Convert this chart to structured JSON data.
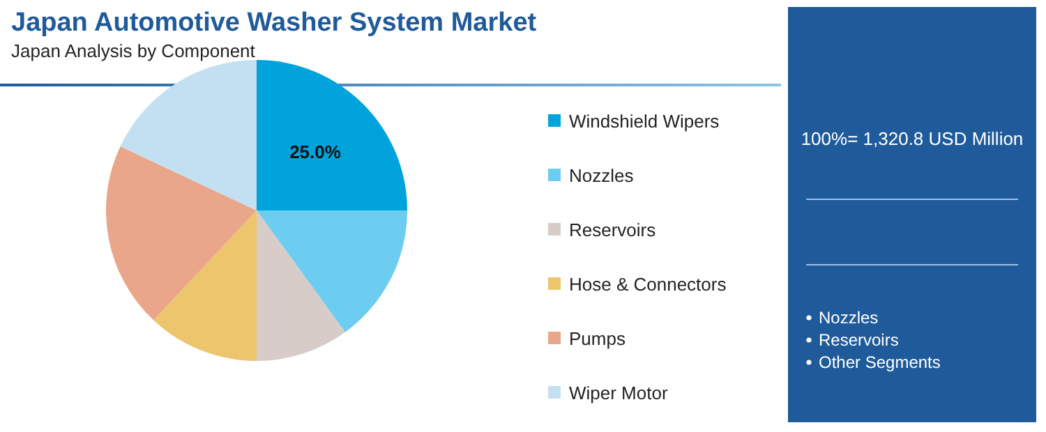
{
  "chart_data": {
    "type": "pie",
    "title": "Japan Automotive Washer System Market",
    "subtitle": "Japan Analysis by Component",
    "categories": [
      "Windshield Wipers",
      "Nozzles",
      "Reservoirs",
      "Hose & Connectors",
      "Pumps",
      "Wiper Motor"
    ],
    "values": [
      25.0,
      15,
      10,
      12,
      20,
      18
    ],
    "colors": [
      "#00a3dc",
      "#6dcdf0",
      "#d7ccc8",
      "#ecc56c",
      "#e9a68b",
      "#c3e0f2"
    ],
    "value_labels": [
      "25.0%",
      null,
      null,
      null,
      null,
      null
    ],
    "legend": "right",
    "annotations": [
      "100%= 1,320.8 USD Million",
      "Nozzles",
      "Reservoirs",
      "Other Segments"
    ]
  }
}
